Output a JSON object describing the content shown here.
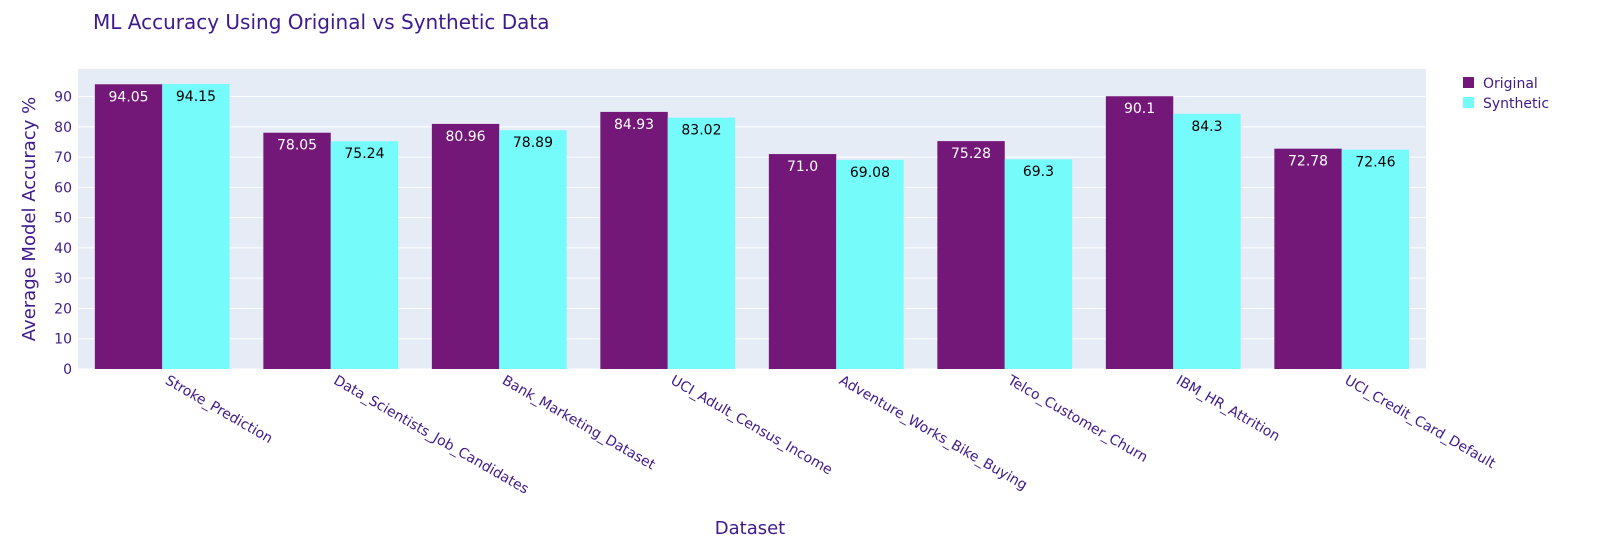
{
  "chart_data": {
    "type": "bar",
    "title": "ML Accuracy Using Original vs Synthetic Data",
    "xlabel": "Dataset",
    "ylabel": "Average Model Accuracy %",
    "categories": [
      "Stroke_Prediction",
      "Data_Scientists_Job_Candidates",
      "Bank_Marketing_Dataset",
      "UCI_Adult_Census_Income",
      "Adventure_Works_Bike_Buying",
      "Telco_Customer_Churn",
      "IBM_HR_Attrition",
      "UCI_Credit_Card_Default"
    ],
    "series": [
      {
        "name": "Original",
        "color": "#731878",
        "label_color": "#ffffff",
        "values": [
          94.05,
          78.05,
          80.96,
          84.93,
          71.0,
          75.28,
          90.1,
          72.78
        ],
        "labels": [
          "94.05",
          "78.05",
          "80.96",
          "84.93",
          "71.0",
          "75.28",
          "90.1",
          "72.78"
        ]
      },
      {
        "name": "Synthetic",
        "color": "#76fbfb",
        "label_color": "#000000",
        "values": [
          94.15,
          75.24,
          78.89,
          83.02,
          69.08,
          69.3,
          84.3,
          72.46
        ],
        "labels": [
          "94.15",
          "75.24",
          "78.89",
          "83.02",
          "69.08",
          "69.3",
          "84.3",
          "72.46"
        ]
      }
    ],
    "ylim": [
      0,
      99.1
    ],
    "yticks": [
      0,
      10,
      20,
      30,
      40,
      50,
      60,
      70,
      80,
      90
    ],
    "grid": true,
    "legend_position": "top-right",
    "plot_background": "#e5ecf6"
  }
}
